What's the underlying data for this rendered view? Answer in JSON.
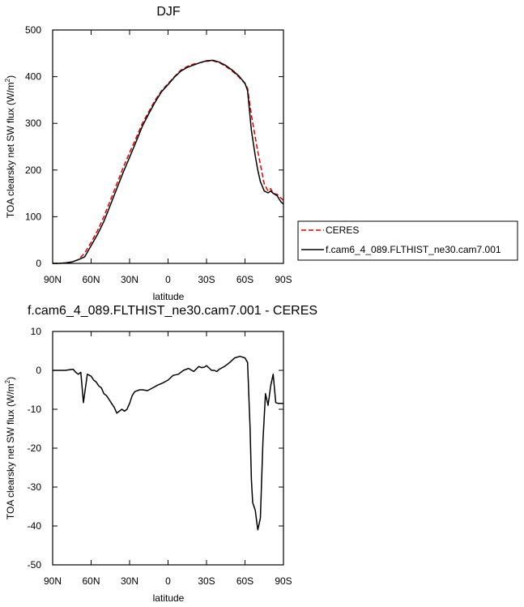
{
  "chart_data": [
    {
      "type": "line",
      "title": "DJF",
      "xlabel": "latitude",
      "ylabel": "TOA clearsky net SW flux (W/m",
      "ylabel_sup": "2",
      "ylabel_end": ")",
      "xlim": [
        90,
        -90
      ],
      "ylim": [
        0,
        500
      ],
      "xticks": [
        90,
        60,
        30,
        0,
        -30,
        -60,
        -90
      ],
      "xtick_labels": [
        "90N",
        "60N",
        "30N",
        "0",
        "30S",
        "60S",
        "90S"
      ],
      "yticks": [
        0,
        100,
        200,
        300,
        400,
        500
      ],
      "ytick_labels": [
        "0",
        "100",
        "200",
        "300",
        "400",
        "500"
      ],
      "grid": false,
      "legend": "right",
      "series": [
        {
          "name": "CERES",
          "color": "#dd0000",
          "dash": "dashed",
          "x": [
            90,
            85,
            80,
            75,
            70,
            65,
            60,
            55,
            50,
            45,
            40,
            35,
            30,
            25,
            20,
            15,
            10,
            5,
            0,
            -5,
            -10,
            -15,
            -20,
            -25,
            -30,
            -35,
            -40,
            -45,
            -50,
            -55,
            -60,
            -62,
            -65,
            -68,
            -70,
            -72,
            -75,
            -78,
            -80,
            -82,
            -85,
            -88,
            -90
          ],
          "y": [
            0,
            0,
            1,
            3,
            8,
            22,
            45,
            70,
            100,
            135,
            170,
            205,
            237,
            268,
            300,
            325,
            350,
            370,
            385,
            400,
            414,
            422,
            427,
            430,
            433,
            434,
            430,
            422,
            412,
            400,
            385,
            375,
            318,
            270,
            240,
            212,
            170,
            155,
            160,
            150,
            148,
            140,
            135
          ]
        },
        {
          "name": "f.cam6_4_089.FLTHIST_ne30.cam7.001",
          "color": "#000000",
          "dash": "solid",
          "x": [
            90,
            85,
            80,
            75,
            70,
            65,
            60,
            55,
            50,
            45,
            40,
            35,
            30,
            25,
            20,
            15,
            10,
            5,
            0,
            -5,
            -10,
            -15,
            -20,
            -25,
            -30,
            -35,
            -40,
            -45,
            -50,
            -55,
            -60,
            -62,
            -65,
            -68,
            -70,
            -72,
            -75,
            -78,
            -80,
            -82,
            -85,
            -88,
            -90
          ],
          "y": [
            0,
            0,
            1,
            3,
            8,
            14,
            38,
            62,
            90,
            125,
            160,
            195,
            227,
            260,
            294,
            321,
            346,
            368,
            383,
            399,
            412,
            420,
            425,
            430,
            434,
            435,
            431,
            424,
            414,
            402,
            386,
            370,
            285,
            230,
            200,
            175,
            155,
            151,
            155,
            150,
            145,
            132,
            127
          ]
        }
      ]
    },
    {
      "type": "line",
      "title": "f.cam6_4_089.FLTHIST_ne30.cam7.001 - CERES",
      "xlabel": "latitude",
      "ylabel": "TOA clearsky net SW flux (W/m",
      "ylabel_sup": "2",
      "ylabel_end": ")",
      "xlim": [
        90,
        -90
      ],
      "ylim": [
        -50,
        10
      ],
      "xticks": [
        90,
        60,
        30,
        0,
        -30,
        -60,
        -90
      ],
      "xtick_labels": [
        "90N",
        "60N",
        "30N",
        "0",
        "30S",
        "60S",
        "90S"
      ],
      "yticks": [
        10,
        0,
        -10,
        -20,
        -30,
        -40,
        -50
      ],
      "ytick_labels": [
        "10",
        "0",
        "-10",
        "-20",
        "-30",
        "-40",
        "-50"
      ],
      "grid": false,
      "series": [
        {
          "color": "#000000",
          "dash": "solid",
          "x": [
            90,
            80,
            76,
            74,
            72,
            70,
            68,
            66,
            63,
            60,
            58,
            56,
            54,
            52,
            50,
            48,
            46,
            44,
            42,
            40,
            38,
            36,
            34,
            32,
            30,
            28,
            26,
            24,
            22,
            20,
            16,
            12,
            8,
            4,
            0,
            -4,
            -8,
            -12,
            -16,
            -20,
            -24,
            -26,
            -28,
            -30,
            -34,
            -36,
            -38,
            -40,
            -44,
            -48,
            -52,
            -56,
            -60,
            -62,
            -64,
            -65,
            -66,
            -67,
            -68,
            -70,
            -72,
            -74,
            -76,
            -78,
            -80,
            -82,
            -84,
            -86,
            -88,
            -90
          ],
          "y": [
            0,
            0,
            0.2,
            0.3,
            -0.5,
            -1,
            -0.5,
            -8.3,
            -1,
            -1.5,
            -2.5,
            -3,
            -4,
            -4.5,
            -6,
            -6.5,
            -7.5,
            -8.5,
            -9.5,
            -11,
            -10.5,
            -10,
            -10.5,
            -10,
            -8.5,
            -6.5,
            -5.5,
            -5.2,
            -5,
            -5,
            -5.2,
            -4.5,
            -3.8,
            -3.2,
            -2.5,
            -1.3,
            -1,
            0,
            0.5,
            -0.3,
            1,
            0.7,
            0.8,
            1.2,
            0,
            0,
            -0.3,
            0.3,
            1,
            2,
            3.2,
            3.6,
            3.2,
            2,
            -15,
            -28,
            -34,
            -35,
            -36,
            -41,
            -38,
            -18,
            -6,
            -9,
            -4,
            -1,
            -8.3,
            -8.5,
            -8.5,
            -8.5
          ]
        }
      ]
    }
  ]
}
